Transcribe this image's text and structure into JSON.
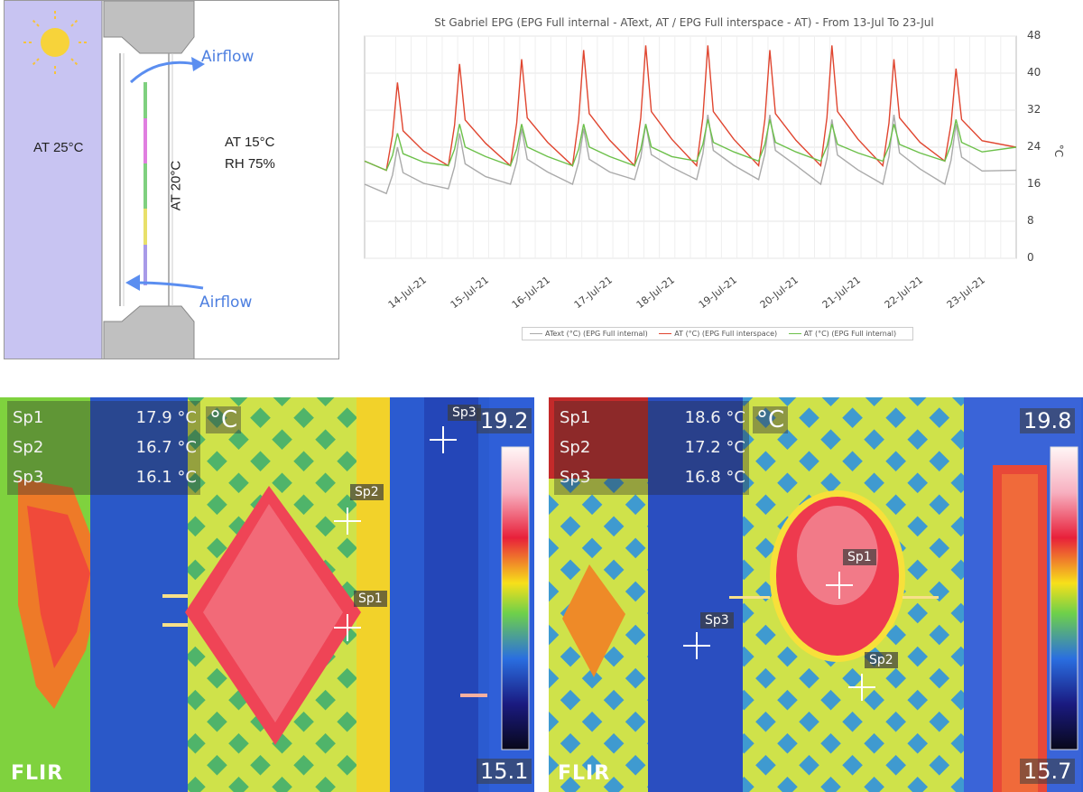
{
  "diagram": {
    "outer_temp": "AT 25°C",
    "inner_temp": "AT 15°C",
    "inner_rh": "RH 75%",
    "cavity_temp": "AT 20°C",
    "airflow_top": "Airflow",
    "airflow_bottom": "Airflow",
    "sun_icon": "sun-icon"
  },
  "chart_data": {
    "type": "line",
    "title": "St Gabriel EPG (EPG Full internal - AText, AT / EPG Full interspace - AT) - From 13-Jul To 23-Jul",
    "ylabel": "°C",
    "ylim": [
      0,
      48
    ],
    "yticks": [
      "0",
      "8",
      "16",
      "24",
      "32",
      "40",
      "48"
    ],
    "x_labels": [
      "14-Jul-21",
      "15-Jul-21",
      "16-Jul-21",
      "17-Jul-21",
      "18-Jul-21",
      "19-Jul-21",
      "20-Jul-21",
      "21-Jul-21",
      "22-Jul-21",
      "23-Jul-21"
    ],
    "legend_position": "bottom",
    "series": [
      {
        "name": "AText (°C) (EPG Full internal)",
        "color": "#aaaaaa",
        "days": [
          13.5,
          14.5,
          15.5,
          16.5,
          17.5,
          18.5,
          19.5,
          20.5,
          21.5,
          22.5
        ],
        "min": [
          14,
          15,
          16,
          16,
          17,
          17,
          17,
          16,
          16,
          16
        ],
        "peak": [
          24,
          27,
          28,
          28,
          29,
          31,
          31,
          30,
          31,
          29
        ]
      },
      {
        "name": "AT (°C) (EPG Full interspace)",
        "color": "#e0452f",
        "days": [
          13.5,
          14.5,
          15.5,
          16.5,
          17.5,
          18.5,
          19.5,
          20.5,
          21.5,
          22.5
        ],
        "min": [
          19,
          20,
          20,
          20,
          20,
          20,
          20,
          20,
          20,
          21
        ],
        "peak": [
          38,
          42,
          43,
          45,
          46,
          46,
          45,
          46,
          43,
          41
        ]
      },
      {
        "name": "AT (°C) (EPG Full internal)",
        "color": "#6cc04a",
        "days": [
          13.5,
          14.5,
          15.5,
          16.5,
          17.5,
          18.5,
          19.5,
          20.5,
          21.5,
          22.5
        ],
        "min": [
          19,
          20,
          20,
          20,
          20,
          21,
          21,
          21,
          21,
          21
        ],
        "peak": [
          27,
          29,
          29,
          29,
          29,
          30,
          30,
          29,
          29,
          30
        ]
      }
    ]
  },
  "thermal_left": {
    "spots": [
      {
        "label": "Sp1",
        "value": "17.9 °C"
      },
      {
        "label": "Sp2",
        "value": "16.7 °C"
      },
      {
        "label": "Sp3",
        "value": "16.1 °C"
      }
    ],
    "unit": "°C",
    "scale_max": "19.2",
    "scale_min": "15.1",
    "marker_labels": [
      "Sp1",
      "Sp2",
      "Sp3"
    ],
    "brand": "FLIR"
  },
  "thermal_right": {
    "spots": [
      {
        "label": "Sp1",
        "value": "18.6 °C"
      },
      {
        "label": "Sp2",
        "value": "17.2 °C"
      },
      {
        "label": "Sp3",
        "value": "16.8 °C"
      }
    ],
    "unit": "°C",
    "scale_max": "19.8",
    "scale_min": "15.7",
    "marker_labels": [
      "Sp1",
      "Sp2",
      "Sp3"
    ],
    "brand": "FLIR"
  }
}
